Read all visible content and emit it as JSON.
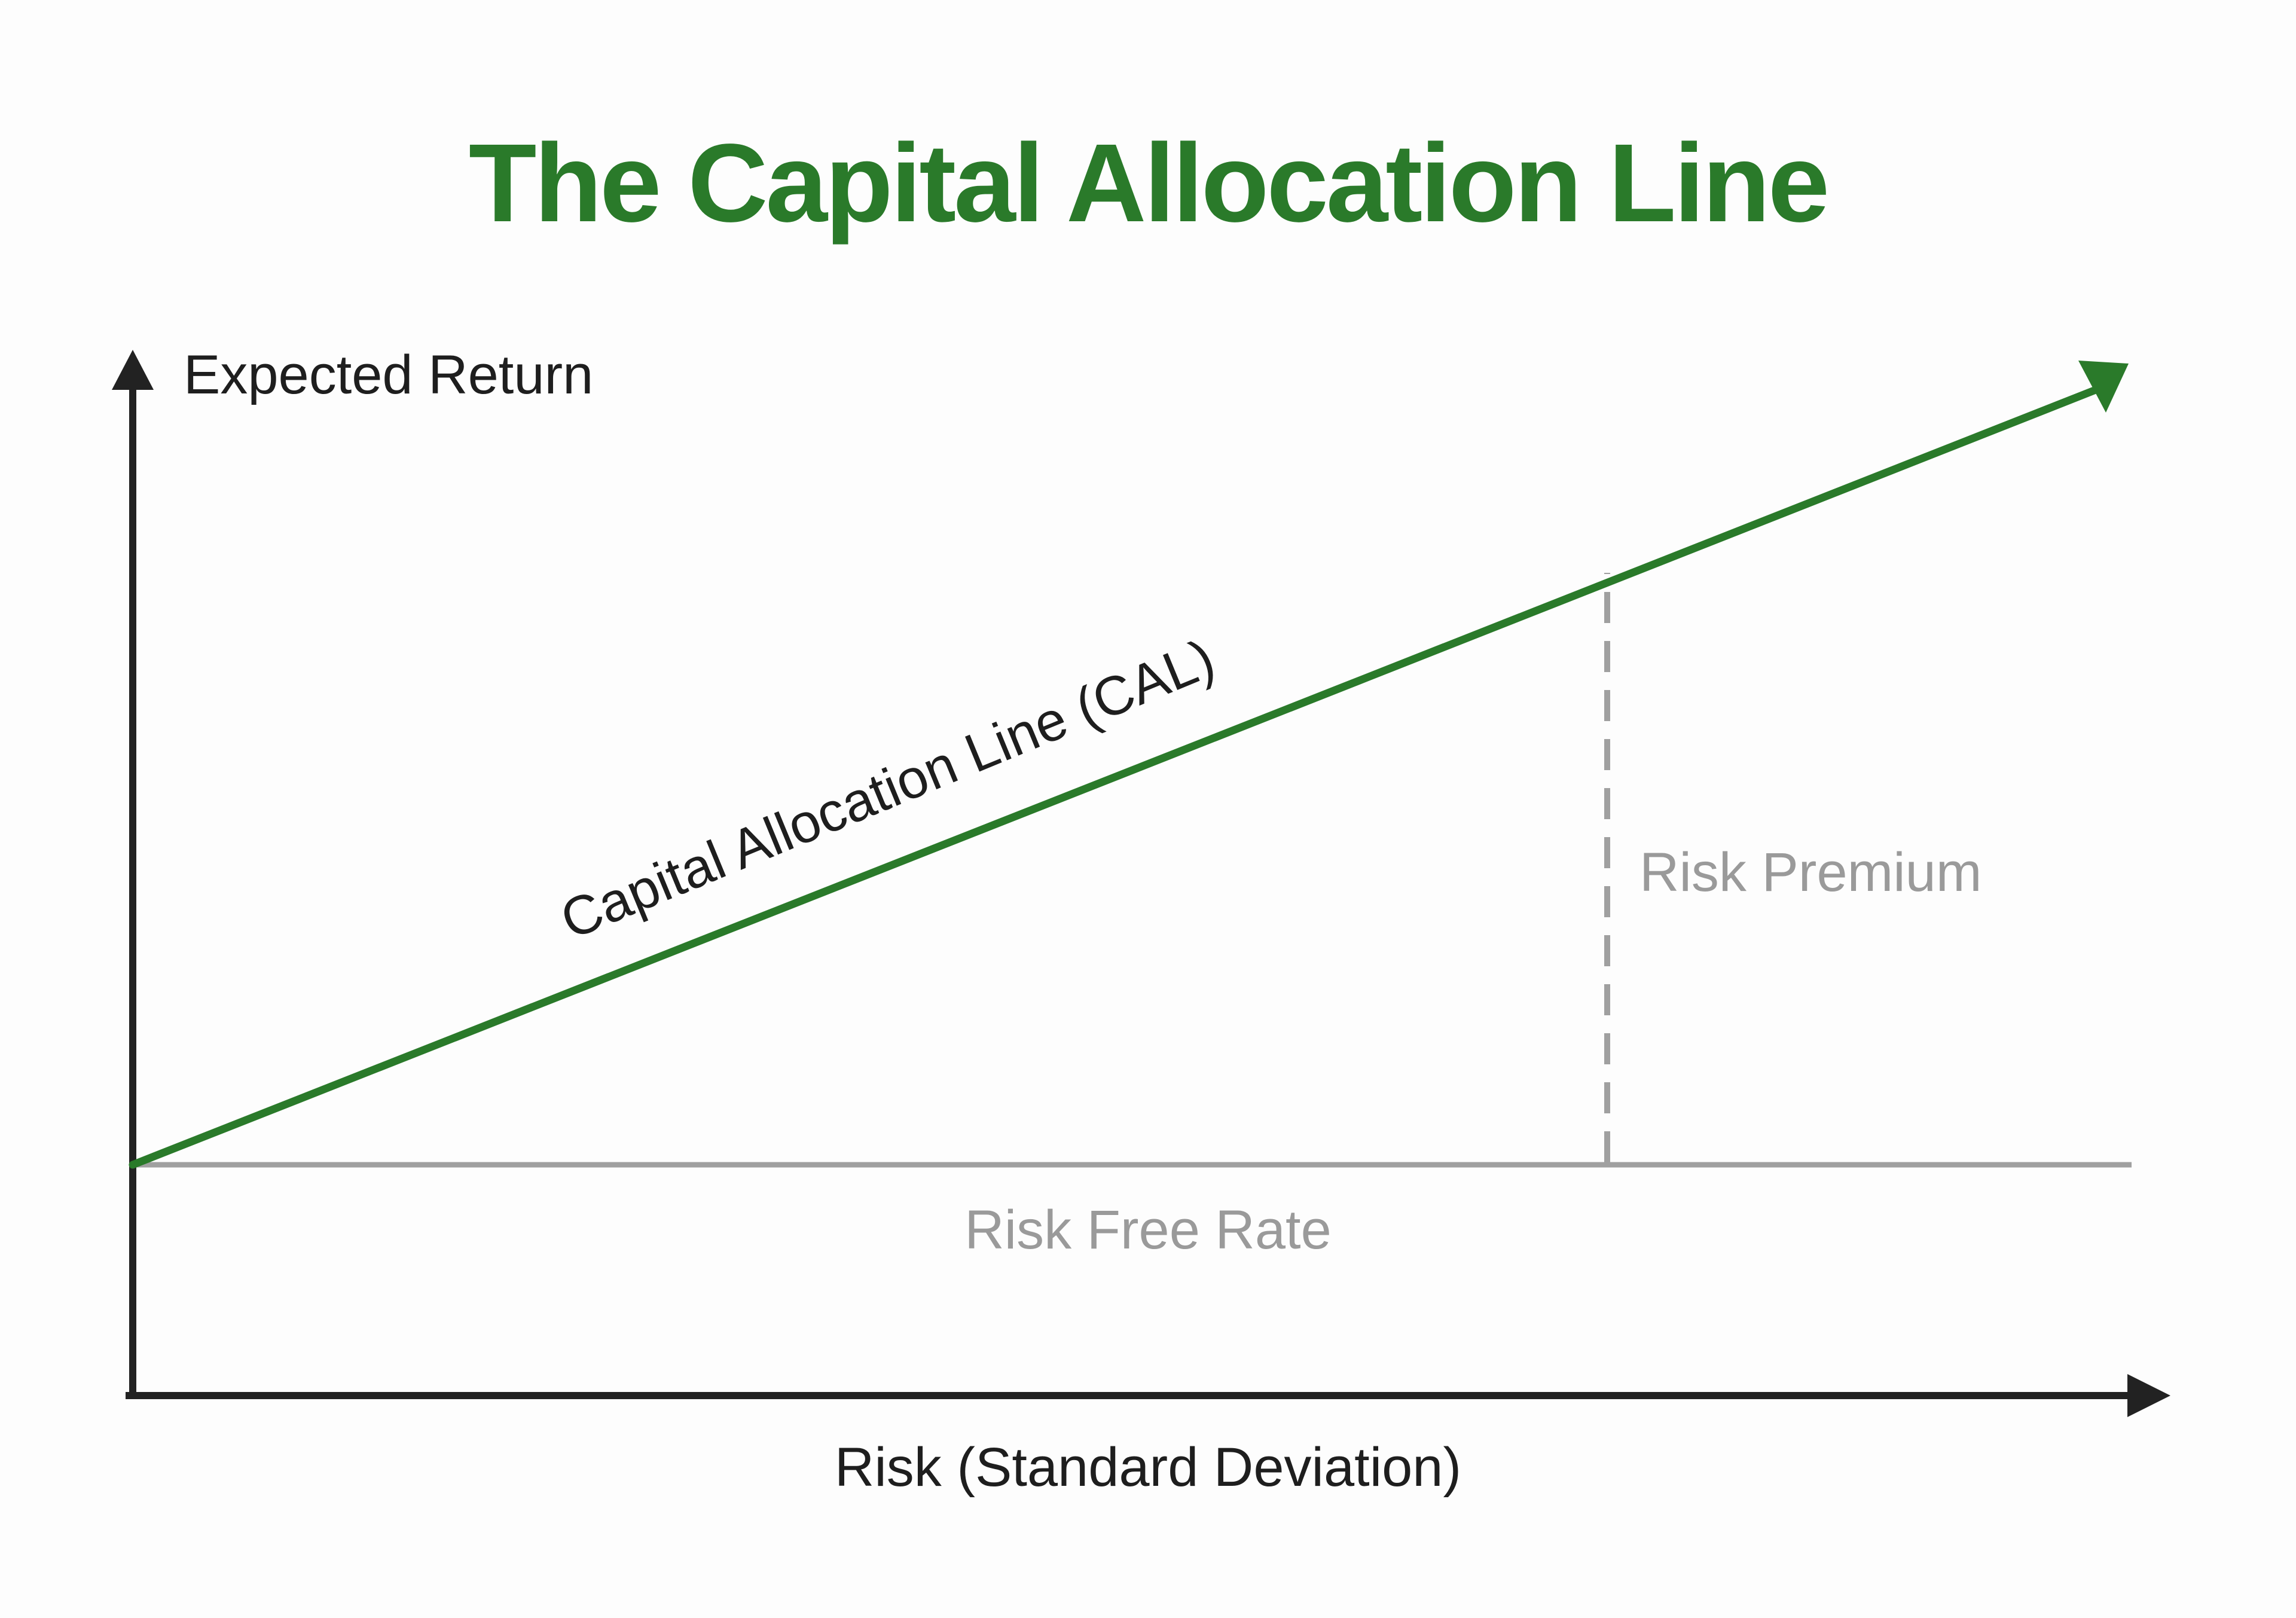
{
  "title": "The Capital Allocation Line",
  "y_axis_label": "Expected Return",
  "x_axis_label": "Risk (Standard Deviation)",
  "cal_label": "Capital Allocation Line (CAL)",
  "risk_premium_label": "Risk Premium",
  "risk_free_rate_label": "Risk Free Rate",
  "colors": {
    "accent_green": "#2a7a2a",
    "axis": "#222222",
    "muted_gray": "#a0a0a0",
    "background": "#fdfdfd"
  }
}
